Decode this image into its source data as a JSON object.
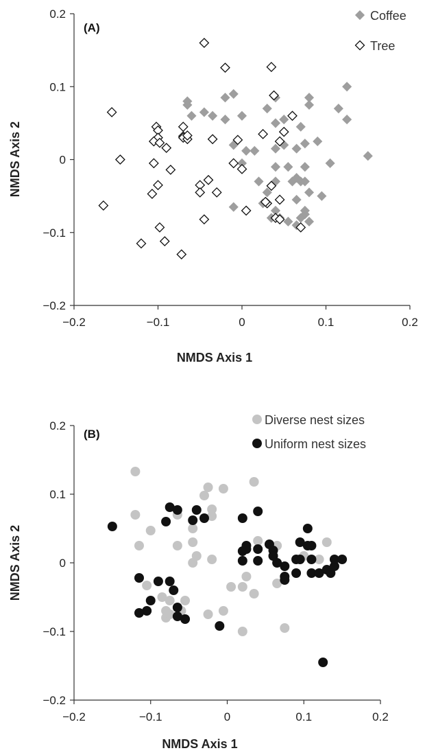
{
  "chart_data": [
    {
      "panel_label": "(A)",
      "type": "scatter",
      "xlabel": "NMDS Axis 1",
      "ylabel": "NMDS Axis 2",
      "xlim": [
        -0.2,
        0.2
      ],
      "ylim": [
        -0.2,
        0.2
      ],
      "xticks": [
        -0.2,
        -0.1,
        0,
        0.1,
        0.2
      ],
      "yticks": [
        -0.2,
        -0.1,
        0,
        0.1,
        0.2
      ],
      "xtick_labels": [
        "−0.2",
        "−0.1",
        "0",
        "0.1",
        "0.2"
      ],
      "ytick_labels": [
        "−0.2",
        "−0.1",
        "0",
        "0.1",
        "0.2"
      ],
      "grid": false,
      "legend_position": "top-right",
      "series": [
        {
          "name": "Coffee",
          "marker": "filled-diamond",
          "color": "#9e9e9e",
          "points": [
            [
              -0.065,
              0.08
            ],
            [
              -0.065,
              0.075
            ],
            [
              -0.06,
              0.06
            ],
            [
              -0.045,
              0.065
            ],
            [
              -0.035,
              0.06
            ],
            [
              -0.02,
              0.085
            ],
            [
              -0.01,
              0.09
            ],
            [
              -0.02,
              0.055
            ],
            [
              0,
              0.06
            ],
            [
              0.03,
              0.07
            ],
            [
              0.04,
              0.085
            ],
            [
              0.04,
              0.05
            ],
            [
              0.05,
              0.055
            ],
            [
              0.07,
              0.045
            ],
            [
              0.08,
              0.085
            ],
            [
              0.08,
              0.075
            ],
            [
              0.115,
              0.07
            ],
            [
              0.125,
              0.1
            ],
            [
              0.125,
              0.055
            ],
            [
              0.15,
              0.005
            ],
            [
              0.05,
              0.02
            ],
            [
              0.065,
              0.015
            ],
            [
              0.09,
              0.025
            ],
            [
              0.075,
              0.022
            ],
            [
              0.105,
              -0.005
            ],
            [
              0.005,
              0.012
            ],
            [
              0.015,
              0.012
            ],
            [
              0.04,
              0.015
            ],
            [
              -0.01,
              0.02
            ],
            [
              0.04,
              -0.01
            ],
            [
              0.055,
              -0.01
            ],
            [
              0.075,
              -0.01
            ],
            [
              0.065,
              -0.025
            ],
            [
              0.07,
              -0.03
            ],
            [
              0.075,
              -0.03
            ],
            [
              0.06,
              -0.03
            ],
            [
              0.02,
              -0.03
            ],
            [
              0.03,
              -0.045
            ],
            [
              0.04,
              -0.03
            ],
            [
              0.025,
              -0.06
            ],
            [
              0.04,
              -0.07
            ],
            [
              0.045,
              -0.08
            ],
            [
              0.035,
              -0.08
            ],
            [
              -0.01,
              -0.065
            ],
            [
              0,
              -0.005
            ],
            [
              0.065,
              -0.055
            ],
            [
              0.08,
              -0.045
            ],
            [
              0.095,
              -0.05
            ],
            [
              0.075,
              -0.07
            ],
            [
              0.075,
              -0.075
            ],
            [
              0.07,
              -0.08
            ],
            [
              0.08,
              -0.085
            ],
            [
              0.055,
              -0.085
            ],
            [
              0.065,
              -0.09
            ]
          ]
        },
        {
          "name": "Tree",
          "marker": "open-diamond",
          "color": "#111111",
          "points": [
            [
              -0.155,
              0.065
            ],
            [
              -0.145,
              0.0
            ],
            [
              -0.165,
              -0.063
            ],
            [
              -0.12,
              -0.115
            ],
            [
              -0.105,
              -0.005
            ],
            [
              -0.102,
              0.045
            ],
            [
              -0.1,
              0.04
            ],
            [
              -0.1,
              0.03
            ],
            [
              -0.105,
              0.025
            ],
            [
              -0.098,
              0.023
            ],
            [
              -0.09,
              0.016
            ],
            [
              -0.085,
              -0.014
            ],
            [
              -0.1,
              -0.035
            ],
            [
              -0.107,
              -0.047
            ],
            [
              -0.098,
              -0.093
            ],
            [
              -0.092,
              -0.112
            ],
            [
              -0.072,
              -0.13
            ],
            [
              -0.07,
              0.045
            ],
            [
              -0.07,
              0.032
            ],
            [
              -0.07,
              0.03
            ],
            [
              -0.065,
              0.028
            ],
            [
              -0.065,
              0.033
            ],
            [
              -0.045,
              0.16
            ],
            [
              -0.02,
              0.126
            ],
            [
              0.035,
              0.127
            ],
            [
              0.038,
              0.088
            ],
            [
              -0.035,
              0.028
            ],
            [
              -0.005,
              0.027
            ],
            [
              -0.01,
              -0.005
            ],
            [
              0,
              -0.013
            ],
            [
              0.025,
              0.035
            ],
            [
              0.05,
              0.038
            ],
            [
              0.06,
              0.06
            ],
            [
              0.045,
              0.025
            ],
            [
              -0.04,
              -0.028
            ],
            [
              -0.05,
              -0.035
            ],
            [
              -0.05,
              -0.045
            ],
            [
              -0.03,
              -0.045
            ],
            [
              -0.045,
              -0.082
            ],
            [
              0.005,
              -0.07
            ],
            [
              0.035,
              -0.036
            ],
            [
              0.045,
              -0.055
            ],
            [
              0.03,
              -0.06
            ],
            [
              0.028,
              -0.058
            ],
            [
              0.04,
              -0.08
            ],
            [
              0.045,
              -0.082
            ],
            [
              0.07,
              -0.093
            ]
          ]
        }
      ]
    },
    {
      "panel_label": "(B)",
      "type": "scatter",
      "xlabel": "NMDS Axis 1",
      "ylabel": "NMDS Axis 2",
      "xlim": [
        -0.2,
        0.2
      ],
      "ylim": [
        -0.2,
        0.2
      ],
      "xticks": [
        -0.2,
        -0.1,
        0,
        0.1,
        0.2
      ],
      "yticks": [
        -0.2,
        -0.1,
        0,
        0.1,
        0.2
      ],
      "xtick_labels": [
        "−0.2",
        "−0.1",
        "0",
        "0.1",
        "0.2"
      ],
      "ytick_labels": [
        "−0.2",
        "−0.1",
        "0",
        "0.1",
        "0.2"
      ],
      "grid": false,
      "legend_position": "top-right",
      "series": [
        {
          "name": "Diverse nest sizes",
          "marker": "filled-circle",
          "color": "#c4c4c4",
          "points": [
            [
              -0.12,
              0.133
            ],
            [
              -0.12,
              0.07
            ],
            [
              -0.115,
              0.025
            ],
            [
              -0.1,
              0.047
            ],
            [
              -0.065,
              0.07
            ],
            [
              -0.03,
              0.098
            ],
            [
              -0.025,
              0.11
            ],
            [
              -0.02,
              0.078
            ],
            [
              -0.02,
              0.068
            ],
            [
              -0.005,
              0.108
            ],
            [
              0.035,
              0.118
            ],
            [
              -0.045,
              0.05
            ],
            [
              -0.045,
              0.03
            ],
            [
              -0.065,
              0.025
            ],
            [
              -0.04,
              0.01
            ],
            [
              -0.02,
              0.005
            ],
            [
              -0.045,
              0.0
            ],
            [
              0.04,
              0.032
            ],
            [
              0.065,
              0.025
            ],
            [
              0.06,
              0.01
            ],
            [
              0.13,
              0.03
            ],
            [
              0.1,
              0.01
            ],
            [
              0.12,
              0.005
            ],
            [
              -0.105,
              -0.033
            ],
            [
              -0.085,
              -0.05
            ],
            [
              -0.08,
              -0.07
            ],
            [
              -0.075,
              -0.055
            ],
            [
              -0.08,
              -0.08
            ],
            [
              -0.075,
              -0.075
            ],
            [
              -0.055,
              -0.055
            ],
            [
              -0.06,
              -0.07
            ],
            [
              -0.025,
              -0.075
            ],
            [
              -0.005,
              -0.07
            ],
            [
              0.005,
              -0.035
            ],
            [
              0.02,
              -0.035
            ],
            [
              0.025,
              -0.02
            ],
            [
              0.035,
              -0.045
            ],
            [
              0.065,
              -0.03
            ],
            [
              0.02,
              -0.1
            ],
            [
              0.075,
              -0.095
            ]
          ]
        },
        {
          "name": "Uniform nest sizes",
          "marker": "filled-circle",
          "color": "#111111",
          "points": [
            [
              -0.15,
              0.053
            ],
            [
              -0.08,
              0.06
            ],
            [
              -0.075,
              0.081
            ],
            [
              -0.065,
              0.077
            ],
            [
              -0.04,
              0.077
            ],
            [
              -0.045,
              0.062
            ],
            [
              -0.03,
              0.065
            ],
            [
              0.02,
              0.065
            ],
            [
              0.04,
              0.075
            ],
            [
              -0.115,
              -0.022
            ],
            [
              -0.09,
              -0.027
            ],
            [
              -0.075,
              -0.027
            ],
            [
              -0.07,
              -0.04
            ],
            [
              -0.1,
              -0.055
            ],
            [
              -0.105,
              -0.07
            ],
            [
              -0.115,
              -0.073
            ],
            [
              -0.065,
              -0.065
            ],
            [
              -0.065,
              -0.078
            ],
            [
              -0.055,
              -0.082
            ],
            [
              -0.01,
              -0.092
            ],
            [
              0.02,
              0.003
            ],
            [
              0.02,
              0.017
            ],
            [
              0.025,
              0.02
            ],
            [
              0.025,
              0.025
            ],
            [
              0.04,
              0.02
            ],
            [
              0.04,
              0.003
            ],
            [
              0.055,
              0.027
            ],
            [
              0.06,
              0.018
            ],
            [
              0.06,
              0.01
            ],
            [
              0.065,
              0.0
            ],
            [
              0.075,
              -0.005
            ],
            [
              0.075,
              -0.02
            ],
            [
              0.075,
              -0.025
            ],
            [
              0.09,
              0.005
            ],
            [
              0.09,
              -0.015
            ],
            [
              0.095,
              0.03
            ],
            [
              0.095,
              0.005
            ],
            [
              0.105,
              0.05
            ],
            [
              0.105,
              0.025
            ],
            [
              0.11,
              0.025
            ],
            [
              0.11,
              0.005
            ],
            [
              0.11,
              -0.015
            ],
            [
              0.12,
              -0.015
            ],
            [
              0.13,
              -0.01
            ],
            [
              0.14,
              -0.005
            ],
            [
              0.14,
              0.005
            ],
            [
              0.15,
              0.005
            ],
            [
              0.135,
              -0.015
            ],
            [
              0.125,
              -0.145
            ]
          ]
        }
      ]
    }
  ]
}
